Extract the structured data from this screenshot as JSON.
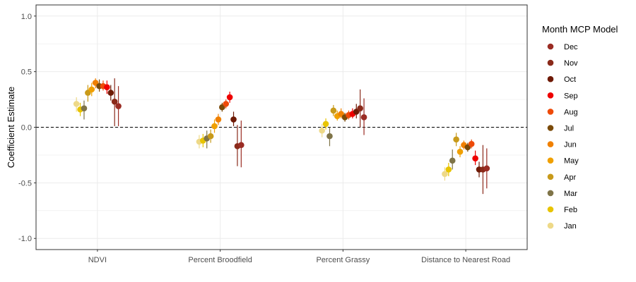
{
  "chart_data": {
    "type": "scatter",
    "ylabel": "Coefficient Estimate",
    "ylim": [
      -1.1,
      1.1
    ],
    "y_ticks": [
      "-1.0",
      "-0.5",
      "0.0",
      "0.5",
      "1.0"
    ],
    "categories": [
      "NDVI",
      "Percent Broodfield",
      "Percent Grassy",
      "Distance to Nearest Road"
    ],
    "reference_line": 0,
    "legend_title": "Month MCP Model",
    "legend_position": "right",
    "grid": true,
    "months_order": [
      "Jan",
      "Feb",
      "Mar",
      "Apr",
      "May",
      "Jun",
      "Jul",
      "Aug",
      "Sep",
      "Oct",
      "Nov",
      "Dec"
    ],
    "legend_order": [
      "Dec",
      "Nov",
      "Oct",
      "Sep",
      "Aug",
      "Jul",
      "Jun",
      "May",
      "Apr",
      "Mar",
      "Feb",
      "Jan"
    ],
    "colors": {
      "Jan": "#eed988",
      "Feb": "#e8c400",
      "Mar": "#7f7448",
      "Apr": "#c89a1a",
      "May": "#f0a000",
      "Jun": "#f08000",
      "Jul": "#7a4a08",
      "Aug": "#ee4a08",
      "Sep": "#ee0000",
      "Oct": "#6e1a05",
      "Nov": "#8a2a1a",
      "Dec": "#9a2c24"
    },
    "series": [
      {
        "name": "Jan",
        "values": [
          0.21,
          -0.13,
          -0.03,
          -0.42
        ],
        "lower": [
          0.14,
          -0.19,
          -0.09,
          -0.48
        ],
        "upper": [
          0.27,
          -0.07,
          0.03,
          -0.36
        ]
      },
      {
        "name": "Feb",
        "values": [
          0.16,
          -0.12,
          0.03,
          -0.38
        ],
        "lower": [
          0.1,
          -0.18,
          -0.02,
          -0.44
        ],
        "upper": [
          0.22,
          -0.06,
          0.08,
          -0.32
        ]
      },
      {
        "name": "Mar",
        "values": [
          0.17,
          -0.1,
          -0.08,
          -0.3
        ],
        "lower": [
          0.07,
          -0.19,
          -0.17,
          -0.38
        ],
        "upper": [
          0.24,
          -0.03,
          0.0,
          -0.2
        ]
      },
      {
        "name": "Apr",
        "values": [
          0.31,
          -0.08,
          0.15,
          -0.11
        ],
        "lower": [
          0.23,
          -0.14,
          0.1,
          -0.17
        ],
        "upper": [
          0.38,
          -0.02,
          0.2,
          -0.05
        ]
      },
      {
        "name": "May",
        "values": [
          0.34,
          0.01,
          0.1,
          -0.22
        ],
        "lower": [
          0.28,
          -0.05,
          0.06,
          -0.27
        ],
        "upper": [
          0.4,
          0.07,
          0.15,
          -0.17
        ]
      },
      {
        "name": "Jun",
        "values": [
          0.4,
          0.07,
          0.12,
          -0.16
        ],
        "lower": [
          0.35,
          0.02,
          0.08,
          -0.2
        ],
        "upper": [
          0.44,
          0.12,
          0.17,
          -0.12
        ]
      },
      {
        "name": "Jul",
        "values": [
          0.37,
          0.18,
          0.09,
          -0.18
        ],
        "lower": [
          0.32,
          0.14,
          0.05,
          -0.22
        ],
        "upper": [
          0.43,
          0.22,
          0.13,
          -0.14
        ]
      },
      {
        "name": "Aug",
        "values": [
          0.37,
          0.21,
          0.11,
          -0.15
        ],
        "lower": [
          0.33,
          0.17,
          0.07,
          -0.19
        ],
        "upper": [
          0.42,
          0.25,
          0.15,
          -0.11
        ]
      },
      {
        "name": "Sep",
        "values": [
          0.36,
          0.27,
          0.12,
          -0.28
        ],
        "lower": [
          0.3,
          0.22,
          0.08,
          -0.34
        ],
        "upper": [
          0.42,
          0.32,
          0.17,
          -0.21
        ]
      },
      {
        "name": "Oct",
        "values": [
          0.31,
          0.07,
          0.14,
          -0.38
        ],
        "lower": [
          0.24,
          0.01,
          0.08,
          -0.45
        ],
        "upper": [
          0.38,
          0.14,
          0.21,
          -0.31
        ]
      },
      {
        "name": "Nov",
        "values": [
          0.23,
          -0.17,
          0.17,
          -0.38
        ],
        "lower": [
          0.01,
          -0.35,
          0.0,
          -0.6
        ],
        "upper": [
          0.44,
          0.02,
          0.34,
          -0.16
        ]
      },
      {
        "name": "Dec",
        "values": [
          0.19,
          -0.16,
          0.09,
          -0.37
        ],
        "lower": [
          0.01,
          -0.36,
          -0.07,
          -0.55
        ],
        "upper": [
          0.37,
          0.06,
          0.26,
          -0.19
        ]
      }
    ]
  }
}
